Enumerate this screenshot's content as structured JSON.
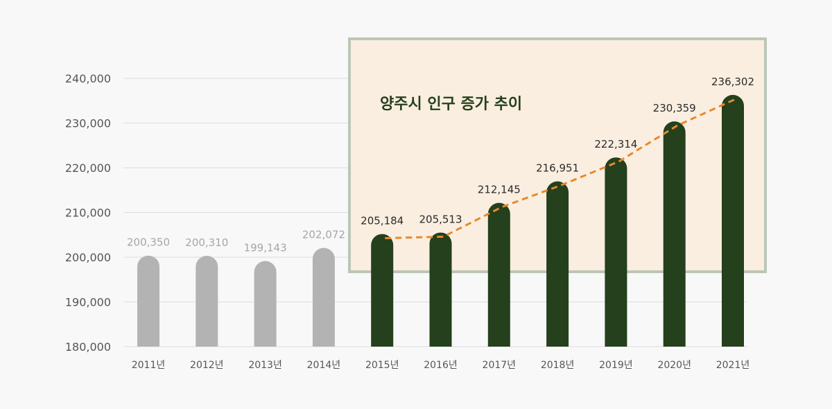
{
  "chart_data": {
    "type": "bar",
    "title": "양주시 인구 증가 추이",
    "categories": [
      "2011년",
      "2012년",
      "2013년",
      "2014년",
      "2015년",
      "2016년",
      "2017년",
      "2018년",
      "2019년",
      "2020년",
      "2021년"
    ],
    "values": [
      200350,
      200310,
      199143,
      202072,
      205184,
      205513,
      212145,
      216951,
      222314,
      230359,
      236302
    ],
    "value_labels": [
      "200,350",
      "200,310",
      "199,143",
      "202,072",
      "205,184",
      "205,513",
      "212,145",
      "216,951",
      "222,314",
      "230,359",
      "236,302"
    ],
    "ylim": [
      180000,
      240000
    ],
    "yticks": [
      180000,
      190000,
      200000,
      210000,
      220000,
      230000,
      240000
    ],
    "ytick_labels": [
      "180,000",
      "190,000",
      "200,000",
      "210,000",
      "220,000",
      "230,000",
      "240,000"
    ],
    "xlabel": "",
    "ylabel": "",
    "grid": true,
    "trend_line": {
      "style": "dashed",
      "from_index": 4,
      "to_index": 10
    },
    "highlight_from_index": 4
  },
  "colors": {
    "muted_bar": "#b3b3b3",
    "muted_label": "#a6a6a6",
    "highlight_bar": "#24401c",
    "highlight_label": "#2a2a2a",
    "trend": "#e8892b",
    "panel_fill": "#faeee0",
    "panel_border": "#bcc6b8",
    "grid": "#dddddd"
  }
}
